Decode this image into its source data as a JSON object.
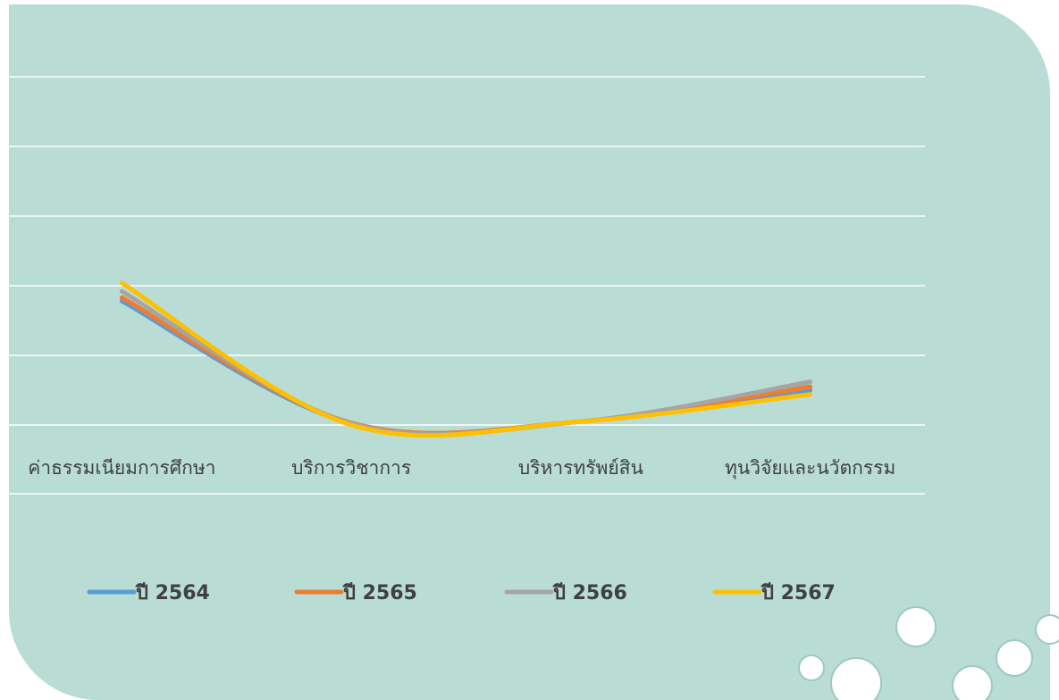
{
  "chart_data": {
    "type": "line",
    "smooth": true,
    "categories": [
      "ค่าธรรมเนียมการศึกษา",
      "บริการวิชาการ",
      "บริหารทรัพย์สิน",
      "ทุนวิจัยและนวัตกรรม"
    ],
    "series": [
      {
        "name": "ปี 2564",
        "color": "#5b9bd5",
        "values": [
          1.78,
          0.02,
          0.05,
          0.5
        ]
      },
      {
        "name": "ปี 2565",
        "color": "#ed7d31",
        "values": [
          1.83,
          0.03,
          0.05,
          0.55
        ]
      },
      {
        "name": "ปี 2566",
        "color": "#a5a5a5",
        "values": [
          1.92,
          0.02,
          0.05,
          0.62
        ]
      },
      {
        "name": "ปี 2567",
        "color": "#ffc000",
        "values": [
          2.04,
          0.0,
          0.05,
          0.44
        ]
      }
    ],
    "ylim": [
      0,
      5
    ],
    "yticks": [
      0,
      1,
      2,
      3,
      4,
      5
    ],
    "grid": true,
    "legend": "bottom"
  }
}
